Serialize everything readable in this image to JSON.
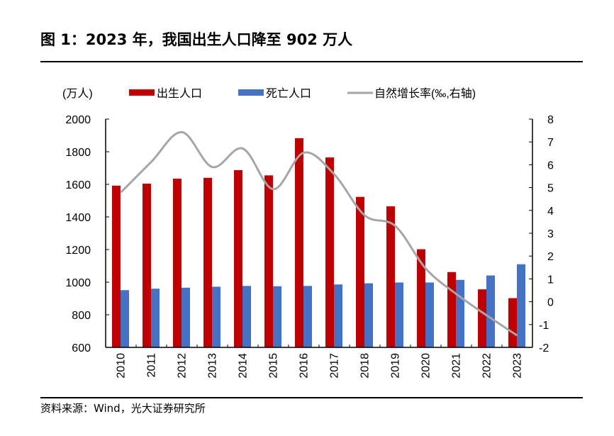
{
  "title": "图 1：2023 年，我国出生人口降至 902 万人",
  "source": "资料来源：Wind，光大证券研究所",
  "colors": {
    "births": "#C00000",
    "deaths": "#4472C4",
    "growth": "#A6A6A6"
  },
  "chart_data": {
    "type": "bar",
    "unit_label": "(万人)",
    "categories": [
      "2010",
      "2011",
      "2012",
      "2013",
      "2014",
      "2015",
      "2016",
      "2017",
      "2018",
      "2019",
      "2020",
      "2021",
      "2022",
      "2023"
    ],
    "series": [
      {
        "name": "出生人口",
        "type": "bar",
        "axis": "left",
        "values": [
          1592,
          1604,
          1635,
          1640,
          1687,
          1655,
          1883,
          1765,
          1523,
          1465,
          1202,
          1062,
          956,
          902
        ]
      },
      {
        "name": "死亡人口",
        "type": "bar",
        "axis": "left",
        "values": [
          951,
          960,
          966,
          972,
          977,
          975,
          977,
          986,
          993,
          998,
          998,
          1014,
          1041,
          1110
        ]
      },
      {
        "name": "自然增长率(‰,右轴)",
        "type": "line",
        "axis": "right",
        "values": [
          4.79,
          6.13,
          7.43,
          5.9,
          6.71,
          4.93,
          6.53,
          5.58,
          3.78,
          3.32,
          1.45,
          0.34,
          -0.6,
          -1.48
        ]
      }
    ],
    "ylim": [
      600,
      2000
    ],
    "yticks": [
      "2000",
      "1800",
      "1600",
      "1400",
      "1200",
      "1000",
      "800",
      "600"
    ],
    "y2lim": [
      -2,
      8
    ],
    "y2ticks": [
      "8",
      "7",
      "6",
      "5",
      "4",
      "3",
      "2",
      "1",
      "0",
      "-1",
      "-2"
    ],
    "legend": "top",
    "grid": false
  }
}
